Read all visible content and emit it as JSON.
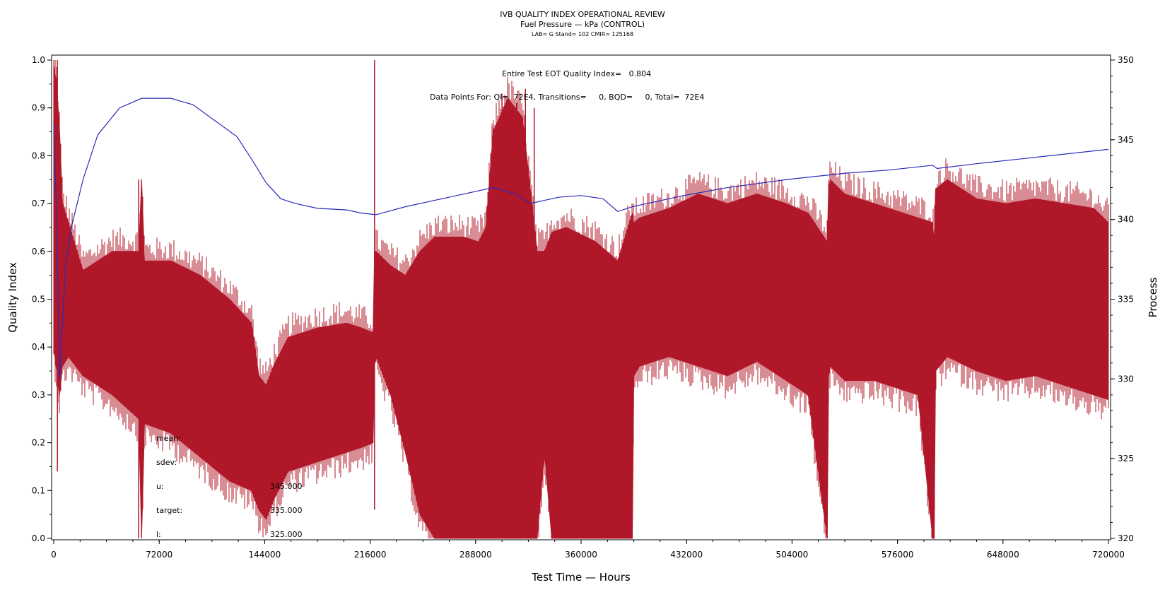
{
  "header": {
    "title": "IVB QUALITY INDEX OPERATIONAL REVIEW",
    "subtitle": "Fuel Pressure — kPa (CONTROL)",
    "lab_line": "LAB= G Stand= 102 CMIR= 125168"
  },
  "annotations": {
    "quality_index": "Entire Test EOT Quality Index=   0.804",
    "data_points": "Data Points For: QI=  72E4, Transitions=     0, BQD=     0, Total=  72E4"
  },
  "stats": {
    "mean_label": "mean:",
    "sdev_label": "sdev:",
    "u_label": "u:",
    "u_value": "345.000",
    "target_label": "target:",
    "target_value": "335.000",
    "l_label": "l:",
    "l_value": "325.000"
  },
  "chart_data": {
    "type": "line",
    "xlabel": "Test Time — Hours",
    "ylabel": "Quality Index",
    "y2label": "Process",
    "xlim": [
      0,
      720000
    ],
    "ylim": [
      0,
      1.0
    ],
    "y2lim": [
      320,
      350
    ],
    "x_ticks": [
      "0",
      "72000",
      "144000",
      "216000",
      "288000",
      "360000",
      "432000",
      "504000",
      "576000",
      "648000",
      "720000"
    ],
    "y_ticks": [
      "0.0",
      "0.1",
      "0.2",
      "0.3",
      "0.4",
      "0.5",
      "0.6",
      "0.7",
      "0.8",
      "0.9",
      "1.0"
    ],
    "y2_ticks": [
      "320",
      "325",
      "330",
      "335",
      "340",
      "345",
      "350"
    ],
    "grid": false,
    "series": [
      {
        "role": "process",
        "axis": "right",
        "color": "#2a2ab8",
        "x": [
          0,
          2000,
          4000,
          8000,
          12000,
          20000,
          30000,
          45000,
          60000,
          70000,
          80000,
          95000,
          110000,
          125000,
          135000,
          145000,
          155000,
          165000,
          180000,
          200000,
          210000,
          220000,
          240000,
          260000,
          280000,
          300000,
          315000,
          325000,
          335000,
          345000,
          360000,
          375000,
          385000,
          395000,
          410000,
          430000,
          460000,
          500000,
          540000,
          570000,
          600000,
          603000,
          630000,
          660000,
          690000,
          720000
        ],
        "values": [
          346,
          340,
          330,
          337,
          339.5,
          342.5,
          345.3,
          347,
          347.6,
          347.6,
          347.6,
          347.2,
          346.2,
          345.2,
          343.8,
          342.3,
          341.3,
          341,
          340.7,
          340.6,
          340.4,
          340.3,
          340.8,
          341.2,
          341.6,
          342,
          341.6,
          341,
          341.2,
          341.4,
          341.5,
          341.3,
          340.5,
          340.8,
          341.1,
          341.5,
          342,
          342.5,
          342.9,
          343.1,
          343.4,
          343.2,
          343.5,
          343.8,
          344.1,
          344.4
        ]
      },
      {
        "role": "quality-index",
        "axis": "left",
        "color": "#b0182a",
        "render": "band",
        "x": [
          0,
          2000,
          4000,
          6000,
          10000,
          20000,
          40000,
          58000,
          60000,
          62000,
          80000,
          100000,
          120000,
          135000,
          140000,
          145000,
          150000,
          160000,
          180000,
          200000,
          210000,
          218000,
          219000,
          220000,
          230000,
          240000,
          250000,
          260000,
          280000,
          290000,
          295000,
          300000,
          310000,
          320000,
          330000,
          335000,
          340000,
          350000,
          370000,
          385000,
          395000,
          396000,
          400000,
          420000,
          440000,
          460000,
          480000,
          500000,
          515000,
          528000,
          529000,
          530000,
          540000,
          560000,
          590000,
          600000,
          601000,
          602000,
          610000,
          630000,
          650000,
          670000,
          690000,
          710000,
          720000
        ],
        "upper": [
          0.99,
          0.95,
          0.85,
          0.7,
          0.66,
          0.56,
          0.6,
          0.6,
          0.75,
          0.58,
          0.58,
          0.55,
          0.5,
          0.45,
          0.34,
          0.32,
          0.36,
          0.42,
          0.44,
          0.45,
          0.44,
          0.43,
          0.6,
          0.6,
          0.57,
          0.55,
          0.6,
          0.63,
          0.63,
          0.62,
          0.65,
          0.85,
          0.92,
          0.88,
          0.6,
          0.6,
          0.64,
          0.65,
          0.62,
          0.58,
          0.68,
          0.66,
          0.67,
          0.69,
          0.72,
          0.7,
          0.72,
          0.7,
          0.68,
          0.62,
          0.73,
          0.75,
          0.72,
          0.7,
          0.67,
          0.66,
          0.62,
          0.73,
          0.75,
          0.71,
          0.7,
          0.71,
          0.7,
          0.69,
          0.66
        ],
        "lower": [
          0.4,
          0.35,
          0.3,
          0.36,
          0.38,
          0.34,
          0.3,
          0.25,
          0.0,
          0.24,
          0.22,
          0.17,
          0.12,
          0.1,
          0.06,
          0.04,
          0.08,
          0.14,
          0.16,
          0.18,
          0.19,
          0.2,
          0.36,
          0.38,
          0.3,
          0.18,
          0.05,
          0.0,
          0.0,
          0.0,
          0.0,
          0.0,
          0.0,
          0.0,
          0.0,
          0.18,
          0.0,
          0.0,
          0.0,
          0.0,
          0.0,
          0.34,
          0.36,
          0.38,
          0.36,
          0.34,
          0.37,
          0.33,
          0.3,
          0.0,
          0.34,
          0.36,
          0.33,
          0.33,
          0.3,
          0.0,
          0.0,
          0.35,
          0.38,
          0.35,
          0.33,
          0.34,
          0.32,
          0.3,
          0.29
        ]
      }
    ],
    "spikes": [
      {
        "x": 58000,
        "low": 0.0,
        "high": 0.75
      },
      {
        "x": 219000,
        "low": 0.06,
        "high": 1.0
      },
      {
        "x": 300000,
        "low": 0.0,
        "high": 0.86
      },
      {
        "x": 306000,
        "low": 0.0,
        "high": 0.93
      },
      {
        "x": 316000,
        "low": 0.0,
        "high": 0.91
      },
      {
        "x": 322000,
        "low": 0.0,
        "high": 0.94
      },
      {
        "x": 328000,
        "low": 0.0,
        "high": 0.9
      },
      {
        "x": 2500,
        "low": 0.14,
        "high": 1.0
      },
      {
        "x": 528000,
        "low": 0.0,
        "high": 0.6
      },
      {
        "x": 601000,
        "low": 0.0,
        "high": 0.5
      }
    ]
  }
}
